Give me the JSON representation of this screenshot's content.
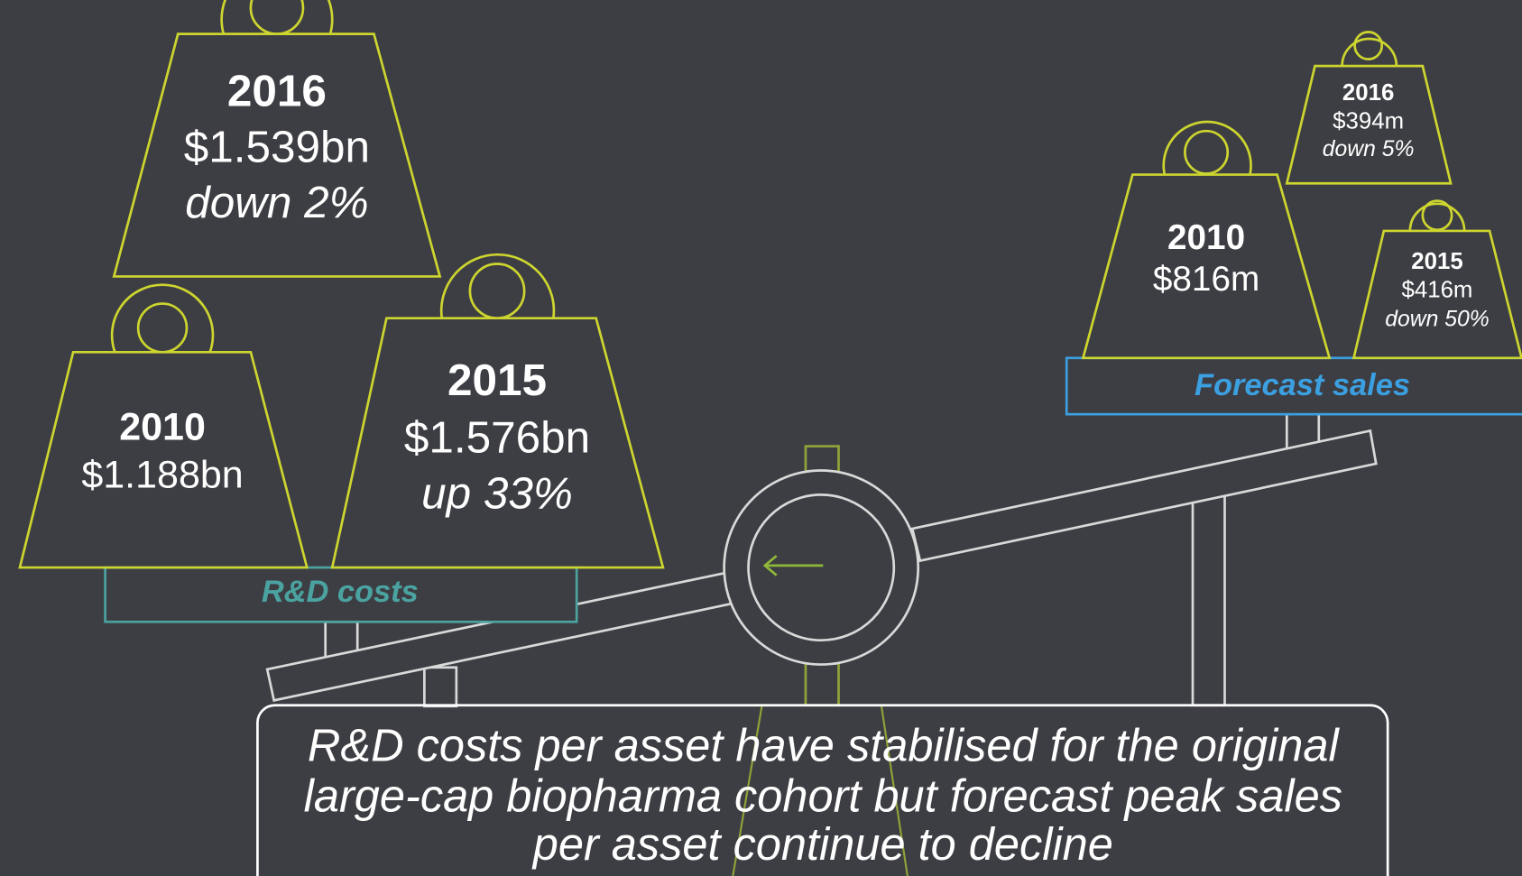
{
  "rd_costs": {
    "label": "R&D costs",
    "weights": [
      {
        "year": "2016",
        "value": "$1.539bn",
        "change": "down 2%"
      },
      {
        "year": "2010",
        "value": "$1.188bn"
      },
      {
        "year": "2015",
        "value": "$1.576bn",
        "change": "up 33%"
      }
    ]
  },
  "forecast_sales": {
    "label": "Forecast sales",
    "weights": [
      {
        "year": "2016",
        "value": "$394m",
        "change": "down 5%"
      },
      {
        "year": "2010",
        "value": "$816m"
      },
      {
        "year": "2015",
        "value": "$416m",
        "change": "down 50%"
      }
    ]
  },
  "caption": {
    "lines": [
      "R&D costs per asset have stabilised for the original",
      "large-cap biopharma cohort but forecast peak sales",
      "per asset continue to decline"
    ]
  }
}
